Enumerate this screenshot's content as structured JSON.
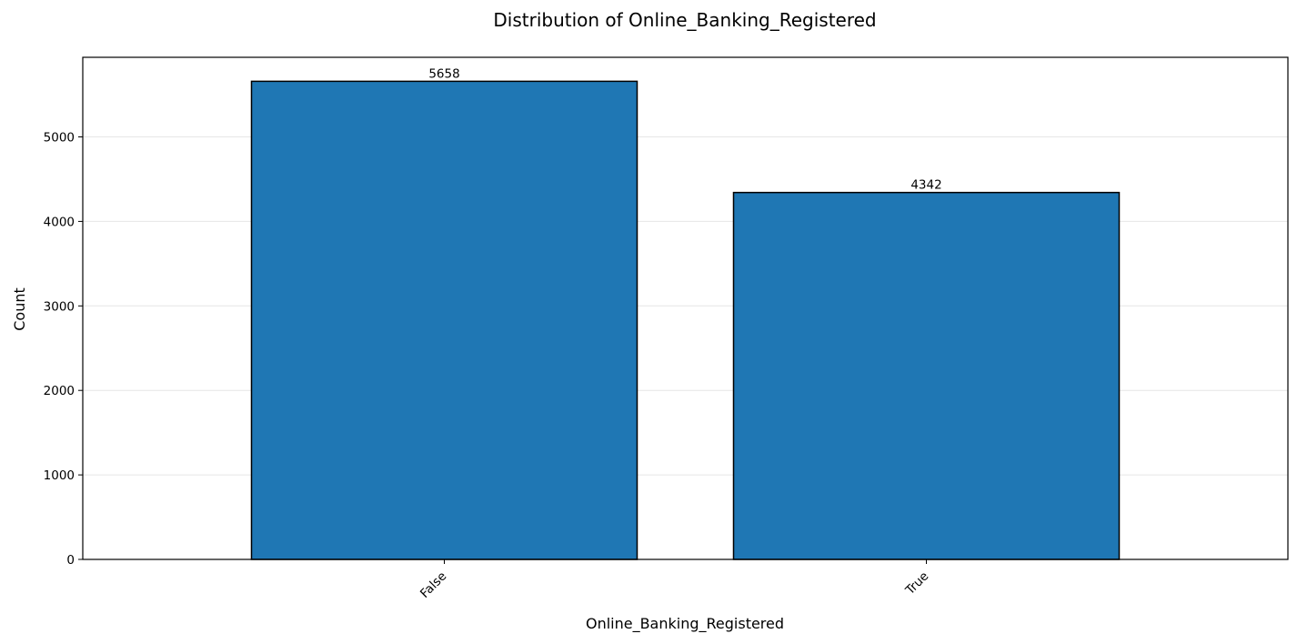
{
  "chart_data": {
    "type": "bar",
    "title": "Distribution of Online_Banking_Registered",
    "xlabel": "Online_Banking_Registered",
    "ylabel": "Count",
    "categories": [
      "False",
      "True"
    ],
    "values": [
      5658,
      4342
    ],
    "data_labels": [
      "5658",
      "4342"
    ],
    "ylim": [
      0,
      5942
    ],
    "yticks": [
      0,
      1000,
      2000,
      3000,
      4000,
      5000
    ],
    "ytick_labels": [
      "0",
      "1000",
      "2000",
      "3000",
      "4000",
      "5000"
    ],
    "grid": "horizontal",
    "legend": "none",
    "x_tick_rotation_deg": 45,
    "colors": {
      "bar_fill": "#1f77b4",
      "bar_edge": "#000000",
      "grid": "#e6e6e6",
      "axes": "#000000"
    }
  }
}
